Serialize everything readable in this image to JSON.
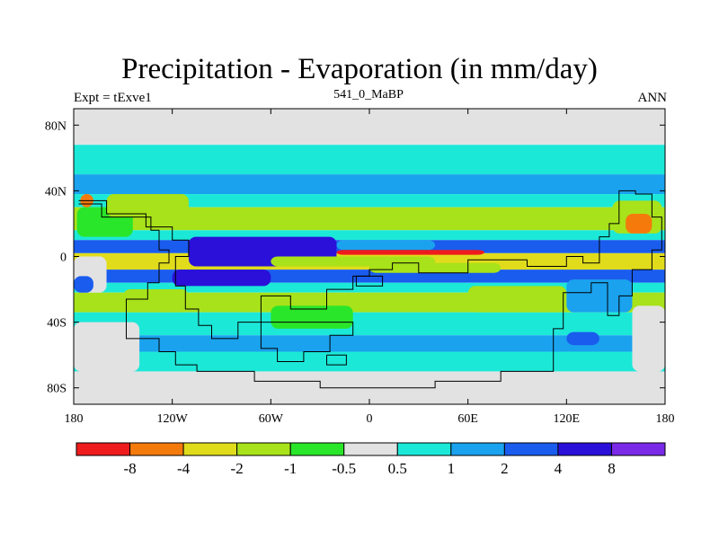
{
  "chart_data": {
    "type": "heatmap",
    "title": "Precipitation - Evaporation (in mm/day)",
    "left_label": "Expt = tExve1",
    "center_label": "541_0_MaBP",
    "right_label": "ANN",
    "x_ticks": [
      {
        "value": -180,
        "label": "180"
      },
      {
        "value": -120,
        "label": "120W"
      },
      {
        "value": -60,
        "label": "60W"
      },
      {
        "value": 0,
        "label": "0"
      },
      {
        "value": 60,
        "label": "60E"
      },
      {
        "value": 120,
        "label": "120E"
      },
      {
        "value": 180,
        "label": "180"
      }
    ],
    "y_ticks": [
      {
        "value": 80,
        "label": "80N"
      },
      {
        "value": 40,
        "label": "40N"
      },
      {
        "value": 0,
        "label": "0"
      },
      {
        "value": -40,
        "label": "40S"
      },
      {
        "value": -80,
        "label": "80S"
      }
    ],
    "xlim": [
      -180,
      180
    ],
    "ylim": [
      -90,
      90
    ],
    "contour_levels": [
      "-8",
      "-4",
      "-2",
      "-1",
      "-0.5",
      "0.5",
      "1",
      "2",
      "4",
      "8"
    ],
    "colors": [
      "#ee1c1c",
      "#f57a0c",
      "#e0dc1c",
      "#a8e21a",
      "#2ae62a",
      "#e2e2e2",
      "#1ce8d8",
      "#1aa2ee",
      "#1a5cee",
      "#2a10d8",
      "#7a2ae6"
    ],
    "zonal_bands": [
      {
        "lat_from": 90,
        "lat_to": 68,
        "class": 5
      },
      {
        "lat_from": 68,
        "lat_to": 50,
        "class": 6
      },
      {
        "lat_from": 50,
        "lat_to": 38,
        "class": 7
      },
      {
        "lat_from": 38,
        "lat_to": 30,
        "class": 6
      },
      {
        "lat_from": 30,
        "lat_to": 16,
        "class": 3
      },
      {
        "lat_from": 16,
        "lat_to": 10,
        "class": 6
      },
      {
        "lat_from": 10,
        "lat_to": 2,
        "class": 8
      },
      {
        "lat_from": 2,
        "lat_to": -8,
        "class": 2
      },
      {
        "lat_from": -8,
        "lat_to": -16,
        "class": 8
      },
      {
        "lat_from": -16,
        "lat_to": -22,
        "class": 6
      },
      {
        "lat_from": -22,
        "lat_to": -34,
        "class": 3
      },
      {
        "lat_from": -34,
        "lat_to": -48,
        "class": 6
      },
      {
        "lat_from": -48,
        "lat_to": -58,
        "class": 7
      },
      {
        "lat_from": -58,
        "lat_to": -70,
        "class": 6
      },
      {
        "lat_from": -70,
        "lat_to": -90,
        "class": 5
      }
    ],
    "regions": [
      {
        "lon": -178,
        "lat": 30,
        "w": 34,
        "h": 18,
        "class": 4
      },
      {
        "lon": -160,
        "lat": 38,
        "w": 50,
        "h": 14,
        "class": 3
      },
      {
        "lon": -176,
        "lat": 38,
        "w": 8,
        "h": 8,
        "class": 1
      },
      {
        "lon": 148,
        "lat": 34,
        "w": 30,
        "h": 20,
        "class": 3
      },
      {
        "lon": 156,
        "lat": 26,
        "w": 16,
        "h": 12,
        "class": 1
      },
      {
        "lon": -110,
        "lat": 12,
        "w": 90,
        "h": 18,
        "class": 9
      },
      {
        "lon": -20,
        "lat": 10,
        "w": 60,
        "h": 6,
        "class": 7
      },
      {
        "lon": -60,
        "lat": 0,
        "w": 100,
        "h": 6,
        "class": 3
      },
      {
        "lon": 0,
        "lat": -4,
        "w": 80,
        "h": 6,
        "class": 3
      },
      {
        "lon": -20,
        "lat": 4,
        "w": 90,
        "h": 3,
        "class": 0
      },
      {
        "lon": -120,
        "lat": -8,
        "w": 60,
        "h": 10,
        "class": 9
      },
      {
        "lon": -60,
        "lat": -30,
        "w": 50,
        "h": 14,
        "class": 4
      },
      {
        "lon": -150,
        "lat": -20,
        "w": 40,
        "h": 14,
        "class": 3
      },
      {
        "lon": 60,
        "lat": -18,
        "w": 60,
        "h": 16,
        "class": 3
      },
      {
        "lon": 120,
        "lat": -14,
        "w": 40,
        "h": 20,
        "class": 7
      },
      {
        "lon": -180,
        "lat": 0,
        "w": 20,
        "h": 22,
        "class": 5
      },
      {
        "lon": -180,
        "lat": -12,
        "w": 12,
        "h": 10,
        "class": 8
      },
      {
        "lon": 160,
        "lat": -30,
        "w": 20,
        "h": 40,
        "class": 5
      },
      {
        "lon": -180,
        "lat": -40,
        "w": 40,
        "h": 30,
        "class": 5
      },
      {
        "lon": 120,
        "lat": -46,
        "w": 20,
        "h": 8,
        "class": 8
      },
      {
        "lon": -60,
        "lat": -50,
        "w": 40,
        "h": 8,
        "class": 7
      },
      {
        "lon": 135,
        "lat": -72,
        "w": 45,
        "h": 18,
        "class": 5
      }
    ],
    "continent_outline_lonlat": [
      [
        -177,
        32
      ],
      [
        -163,
        32
      ],
      [
        -163,
        24
      ],
      [
        -133,
        24
      ],
      [
        -133,
        16
      ],
      [
        -128,
        16
      ],
      [
        -128,
        4
      ],
      [
        -122,
        4
      ],
      [
        -122,
        -4
      ],
      [
        -128,
        -4
      ],
      [
        -128,
        -16
      ],
      [
        -135,
        -16
      ],
      [
        -135,
        -26
      ],
      [
        -148,
        -26
      ],
      [
        -148,
        -38
      ],
      [
        -148,
        -50
      ],
      [
        -128,
        -50
      ],
      [
        -128,
        -58
      ],
      [
        -118,
        -58
      ],
      [
        -118,
        -66
      ],
      [
        -105,
        -66
      ],
      [
        -105,
        -70
      ],
      [
        -70,
        -70
      ],
      [
        -70,
        -76
      ],
      [
        -30,
        -76
      ],
      [
        -30,
        -80
      ],
      [
        40,
        -80
      ],
      [
        40,
        -76
      ],
      [
        80,
        -76
      ],
      [
        80,
        -70
      ],
      [
        112,
        -70
      ],
      [
        112,
        -44
      ],
      [
        118,
        -44
      ],
      [
        118,
        -22
      ],
      [
        135,
        -22
      ],
      [
        135,
        -16
      ],
      [
        145,
        -16
      ],
      [
        145,
        -36
      ],
      [
        152,
        -36
      ],
      [
        152,
        -24
      ],
      [
        160,
        -24
      ],
      [
        160,
        -8
      ],
      [
        172,
        -8
      ],
      [
        172,
        4
      ],
      [
        178,
        4
      ],
      [
        178,
        24
      ],
      [
        172,
        24
      ],
      [
        172,
        38
      ],
      [
        162,
        38
      ],
      [
        162,
        40
      ],
      [
        152,
        40
      ],
      [
        152,
        20
      ],
      [
        146,
        20
      ],
      [
        146,
        12
      ],
      [
        140,
        12
      ],
      [
        140,
        -4
      ],
      [
        130,
        -4
      ],
      [
        130,
        0
      ],
      [
        120,
        0
      ],
      [
        120,
        -6
      ],
      [
        96,
        -6
      ],
      [
        96,
        -2
      ],
      [
        60,
        -2
      ],
      [
        60,
        -10
      ],
      [
        30,
        -10
      ],
      [
        30,
        -4
      ],
      [
        14,
        -4
      ],
      [
        14,
        -8
      ],
      [
        0,
        -8
      ],
      [
        0,
        -12
      ],
      [
        -10,
        -12
      ],
      [
        -10,
        -20
      ],
      [
        -26,
        -20
      ],
      [
        -26,
        -32
      ],
      [
        -48,
        -32
      ],
      [
        -48,
        -24
      ],
      [
        -66,
        -24
      ],
      [
        -66,
        -40
      ],
      [
        -80,
        -40
      ],
      [
        -80,
        -50
      ],
      [
        -96,
        -50
      ],
      [
        -96,
        -42
      ],
      [
        -104,
        -42
      ],
      [
        -104,
        -32
      ],
      [
        -112,
        -32
      ],
      [
        -112,
        -18
      ],
      [
        -118,
        -18
      ],
      [
        -118,
        0
      ],
      [
        -110,
        0
      ],
      [
        -110,
        10
      ],
      [
        -120,
        10
      ],
      [
        -120,
        18
      ],
      [
        -136,
        18
      ],
      [
        -136,
        26
      ],
      [
        -160,
        26
      ],
      [
        -160,
        34
      ],
      [
        -177,
        34
      ]
    ],
    "islands_lonlat": [
      [
        [
          -66,
          -40
        ],
        [
          -66,
          -56
        ],
        [
          -56,
          -56
        ],
        [
          -56,
          -64
        ],
        [
          -40,
          -64
        ],
        [
          -40,
          -58
        ],
        [
          -24,
          -58
        ],
        [
          -24,
          -48
        ],
        [
          -10,
          -48
        ],
        [
          -10,
          -40
        ],
        [
          -66,
          -40
        ]
      ],
      [
        [
          -26,
          -60
        ],
        [
          -14,
          -60
        ],
        [
          -14,
          -66
        ],
        [
          -26,
          -66
        ],
        [
          -26,
          -60
        ]
      ],
      [
        [
          -8,
          -12
        ],
        [
          8,
          -12
        ],
        [
          8,
          -18
        ],
        [
          -8,
          -18
        ],
        [
          -8,
          -12
        ]
      ]
    ]
  }
}
